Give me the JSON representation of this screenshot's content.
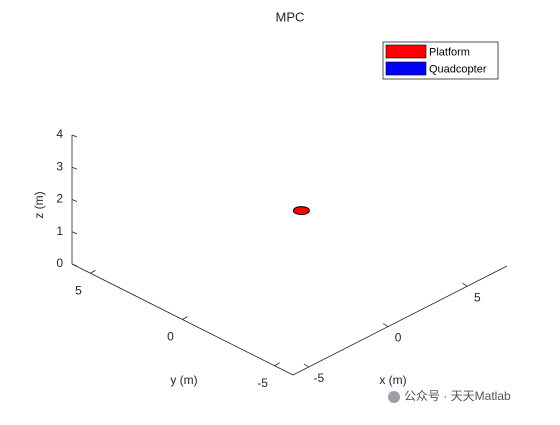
{
  "chart_data": {
    "type": "scatter3d",
    "title": "MPC",
    "xlabel": "x (m)",
    "ylabel": "y (m)",
    "zlabel": "z (m)",
    "xlim": [
      -6,
      7.5
    ],
    "ylim": [
      -6,
      6
    ],
    "zlim": [
      0,
      4
    ],
    "xticks": [
      -5,
      0,
      5
    ],
    "yticks": [
      -5,
      0,
      5
    ],
    "zticks": [
      0,
      1,
      2,
      3,
      4
    ],
    "legend": "upper right",
    "series": [
      {
        "name": "Platform",
        "color": "#ff0000",
        "x": [
          1.5
        ],
        "y": [
          0
        ],
        "z": [
          1.5
        ]
      },
      {
        "name": "Quadcopter",
        "color": "#0000ff"
      }
    ]
  },
  "watermark": "公众号 · 天天Matlab"
}
